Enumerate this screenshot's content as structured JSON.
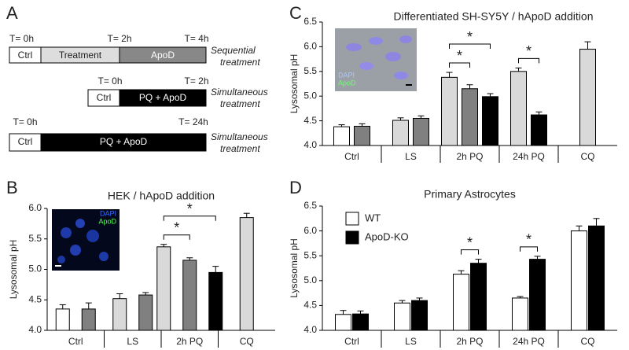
{
  "panel_a": {
    "label": "A",
    "rows": [
      {
        "times": [
          "T= 0h",
          "T= 2h",
          "T= 4h"
        ],
        "segments": [
          "Ctrl",
          "Treatment",
          "ApoD"
        ],
        "note": [
          "Sequential",
          "treatment"
        ]
      },
      {
        "times": [
          "T= 0h",
          "T= 2h"
        ],
        "segments": [
          "Ctrl",
          "PQ + ApoD"
        ],
        "note": [
          "Simultaneous",
          "treatment"
        ]
      },
      {
        "times": [
          "T= 0h",
          "T= 24h"
        ],
        "segments": [
          "Ctrl",
          "PQ + ApoD"
        ],
        "note": [
          "Simultaneous",
          "treatment"
        ]
      }
    ]
  },
  "chart_data": [
    {
      "type": "bar",
      "label": "B",
      "title": "HEK / hApoD addition",
      "y_label": "Lysosomal pH",
      "inset": [
        "DAPI",
        "ApoD"
      ],
      "categories": [
        "Ctrl",
        "LS",
        "2h PQ",
        "CQ"
      ],
      "series": [
        {
          "color": "#ffffff",
          "values": [
            4.35,
            null,
            null,
            null
          ],
          "errors": [
            0.07,
            null,
            null,
            null
          ]
        },
        {
          "color": "#d9d9d9",
          "values": [
            null,
            4.52,
            5.37,
            5.85
          ],
          "errors": [
            null,
            0.08,
            0.04,
            0.07
          ]
        },
        {
          "color": "#808080",
          "values": [
            4.35,
            4.58,
            5.15,
            null
          ],
          "errors": [
            0.1,
            0.04,
            0.04,
            null
          ]
        },
        {
          "color": "#000000",
          "values": [
            null,
            null,
            4.95,
            null
          ],
          "errors": [
            null,
            null,
            0.1,
            null
          ]
        }
      ],
      "ylim": [
        4,
        6
      ],
      "yticks": [
        {
          "value": 4,
          "label": "4.0"
        },
        4.5,
        {
          "value": 5,
          "label": "5.0"
        },
        5.5,
        {
          "value": 6,
          "label": "6.0"
        }
      ],
      "significance": [
        {
          "category": 2,
          "series": [
            1,
            2
          ],
          "label": "*"
        },
        {
          "category": 2,
          "series": [
            1,
            3
          ],
          "label": "*"
        }
      ]
    },
    {
      "type": "bar",
      "label": "C",
      "title": "Differentiated SH-SY5Y / hApoD addition",
      "y_label": "Lysosomal pH",
      "inset": [
        "DAPI",
        "ApoD"
      ],
      "categories": [
        "Ctrl",
        "LS",
        "2h PQ",
        "24h PQ",
        "CQ"
      ],
      "series": [
        {
          "color": "#ffffff",
          "values": [
            4.38,
            null,
            null,
            null,
            null
          ],
          "errors": [
            0.04,
            null,
            null,
            null,
            null
          ]
        },
        {
          "color": "#d9d9d9",
          "values": [
            null,
            4.51,
            5.38,
            5.5,
            5.95
          ],
          "errors": [
            null,
            0.05,
            0.1,
            0.07,
            0.15
          ]
        },
        {
          "color": "#808080",
          "values": [
            4.39,
            4.55,
            5.15,
            null,
            null
          ],
          "errors": [
            0.05,
            0.05,
            0.08,
            null,
            null
          ]
        },
        {
          "color": "#000000",
          "values": [
            null,
            null,
            4.99,
            4.62,
            null
          ],
          "errors": [
            null,
            null,
            0.06,
            0.06,
            null
          ]
        }
      ],
      "ylim": [
        4,
        6.5
      ],
      "yticks": [
        {
          "value": 4,
          "label": "4.0"
        },
        4.5,
        {
          "value": 5,
          "label": "5.0"
        },
        5.5,
        {
          "value": 6,
          "label": "6.0"
        },
        6.5
      ],
      "significance": [
        {
          "category": 2,
          "series": [
            1,
            2
          ],
          "label": "*"
        },
        {
          "category": 2,
          "series": [
            1,
            3
          ],
          "label": "*"
        },
        {
          "category": 3,
          "series": [
            1,
            3
          ],
          "label": "*"
        }
      ]
    },
    {
      "type": "bar",
      "label": "D",
      "title": "Primary Astrocytes",
      "y_label": "Lysosomal pH",
      "legend": "upper left",
      "categories": [
        "Ctrl",
        "LS",
        "2h PQ",
        "24h PQ",
        "CQ"
      ],
      "series": [
        {
          "name": "WT",
          "color": "#ffffff",
          "values": [
            4.32,
            4.55,
            5.13,
            4.65,
            6.0
          ],
          "errors": [
            0.08,
            0.05,
            0.07,
            0.03,
            0.1
          ]
        },
        {
          "name": "ApoD-KO",
          "color": "#000000",
          "values": [
            4.33,
            4.6,
            5.35,
            5.43,
            6.1
          ],
          "errors": [
            0.06,
            0.05,
            0.08,
            0.06,
            0.15
          ]
        }
      ],
      "ylim": [
        4,
        6.5
      ],
      "yticks": [
        {
          "value": 4,
          "label": "4.0"
        },
        4.5,
        {
          "value": 5,
          "label": "5.0"
        },
        5.5,
        {
          "value": 6,
          "label": "6.0"
        },
        6.5
      ],
      "significance": [
        {
          "category": 2,
          "series": [
            0,
            1
          ],
          "label": "*"
        },
        {
          "category": 3,
          "series": [
            0,
            1
          ],
          "label": "*"
        }
      ]
    }
  ]
}
